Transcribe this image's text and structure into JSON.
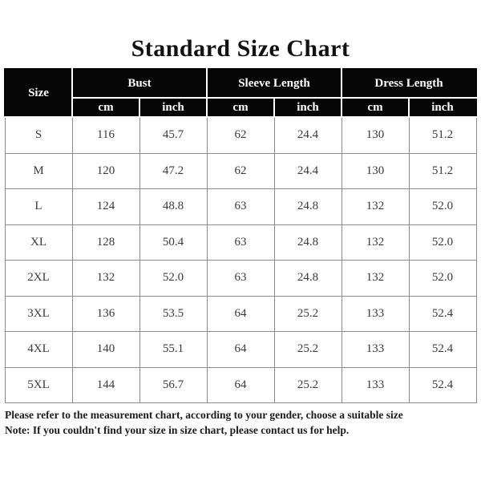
{
  "page": {
    "title": "Standard Size Chart"
  },
  "chart_data": {
    "type": "table",
    "title": "Standard Size Chart",
    "header_groups": [
      "Size",
      "Bust",
      "Sleeve Length",
      "Dress Length"
    ],
    "unit_row": [
      "cm",
      "inch",
      "cm",
      "inch",
      "cm",
      "inch"
    ],
    "columns": [
      "Size",
      "Bust cm",
      "Bust inch",
      "Sleeve Length cm",
      "Sleeve Length inch",
      "Dress Length cm",
      "Dress Length inch"
    ],
    "rows": [
      [
        "S",
        "116",
        "45.7",
        "62",
        "24.4",
        "130",
        "51.2"
      ],
      [
        "M",
        "120",
        "47.2",
        "62",
        "24.4",
        "130",
        "51.2"
      ],
      [
        "L",
        "124",
        "48.8",
        "63",
        "24.8",
        "132",
        "52.0"
      ],
      [
        "XL",
        "128",
        "50.4",
        "63",
        "24.8",
        "132",
        "52.0"
      ],
      [
        "2XL",
        "132",
        "52.0",
        "63",
        "24.8",
        "132",
        "52.0"
      ],
      [
        "3XL",
        "136",
        "53.5",
        "64",
        "25.2",
        "133",
        "52.4"
      ],
      [
        "4XL",
        "140",
        "55.1",
        "64",
        "25.2",
        "133",
        "52.4"
      ],
      [
        "5XL",
        "144",
        "56.7",
        "64",
        "25.2",
        "133",
        "52.4"
      ]
    ]
  },
  "footer": {
    "line1": "Please refer to the measurement chart, according to your gender, choose a suitable size",
    "line2": "Note: If you couldn't find your size in size chart, please contact us for help."
  },
  "colors": {
    "header_bg": "#060606",
    "header_text": "#ffffff",
    "body_text": "#3a3a3a",
    "grid_line": "#8c8c8c",
    "background": "#ffffff"
  }
}
